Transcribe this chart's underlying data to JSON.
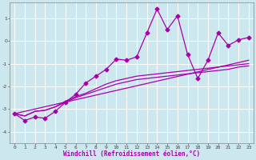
{
  "xlabel": "Windchill (Refroidissement éolien,°C)",
  "background_color": "#cce8ee",
  "grid_color": "#ffffff",
  "line_color": "#aa00aa",
  "xlim": [
    -0.5,
    23.5
  ],
  "ylim": [
    -4.5,
    1.7
  ],
  "yticks": [
    -4,
    -3,
    -2,
    -1,
    0,
    1
  ],
  "xticks": [
    0,
    1,
    2,
    3,
    4,
    5,
    6,
    7,
    8,
    9,
    10,
    11,
    12,
    13,
    14,
    15,
    16,
    17,
    18,
    19,
    20,
    21,
    22,
    23
  ],
  "series": [
    {
      "x": [
        0,
        1,
        2,
        3,
        4,
        5,
        6,
        7,
        8,
        9,
        10,
        11,
        12,
        13,
        14,
        15,
        16,
        17,
        18,
        19,
        20,
        21,
        22,
        23
      ],
      "y": [
        -3.2,
        -3.3,
        -3.1,
        -3.05,
        -2.9,
        -2.7,
        -2.5,
        -2.35,
        -2.2,
        -2.05,
        -1.9,
        -1.8,
        -1.7,
        -1.65,
        -1.6,
        -1.55,
        -1.5,
        -1.45,
        -1.4,
        -1.35,
        -1.3,
        -1.25,
        -1.15,
        -1.1
      ],
      "marker": false
    },
    {
      "x": [
        0,
        1,
        2,
        3,
        4,
        5,
        6,
        7,
        8,
        9,
        10,
        11,
        12,
        13,
        14,
        15,
        16,
        17,
        18,
        19,
        20,
        21,
        22,
        23
      ],
      "y": [
        -3.2,
        -3.3,
        -3.1,
        -3.05,
        -2.9,
        -2.65,
        -2.45,
        -2.3,
        -2.1,
        -1.9,
        -1.75,
        -1.65,
        -1.55,
        -1.5,
        -1.45,
        -1.4,
        -1.35,
        -1.3,
        -1.25,
        -1.2,
        -1.15,
        -1.1,
        -1.05,
        -1.0
      ],
      "marker": false
    },
    {
      "x": [
        0,
        23
      ],
      "y": [
        -3.2,
        -0.85
      ],
      "marker": false
    },
    {
      "x": [
        0,
        1,
        2,
        3,
        4,
        5,
        6,
        7,
        8,
        9,
        10,
        11,
        12,
        13,
        14,
        15,
        16,
        17,
        18,
        19,
        20,
        21,
        22,
        23
      ],
      "y": [
        -3.2,
        -3.5,
        -3.35,
        -3.4,
        -3.1,
        -2.7,
        -2.35,
        -1.85,
        -1.55,
        -1.25,
        -0.8,
        -0.85,
        -0.7,
        0.35,
        1.4,
        0.5,
        1.1,
        -0.6,
        -1.65,
        -0.85,
        0.35,
        -0.2,
        0.05,
        0.15
      ],
      "marker": true
    }
  ],
  "marker_style": "D",
  "marker_size": 2.5,
  "linewidth": 0.9,
  "axis_fontsize": 5.5,
  "tick_fontsize": 4.5
}
